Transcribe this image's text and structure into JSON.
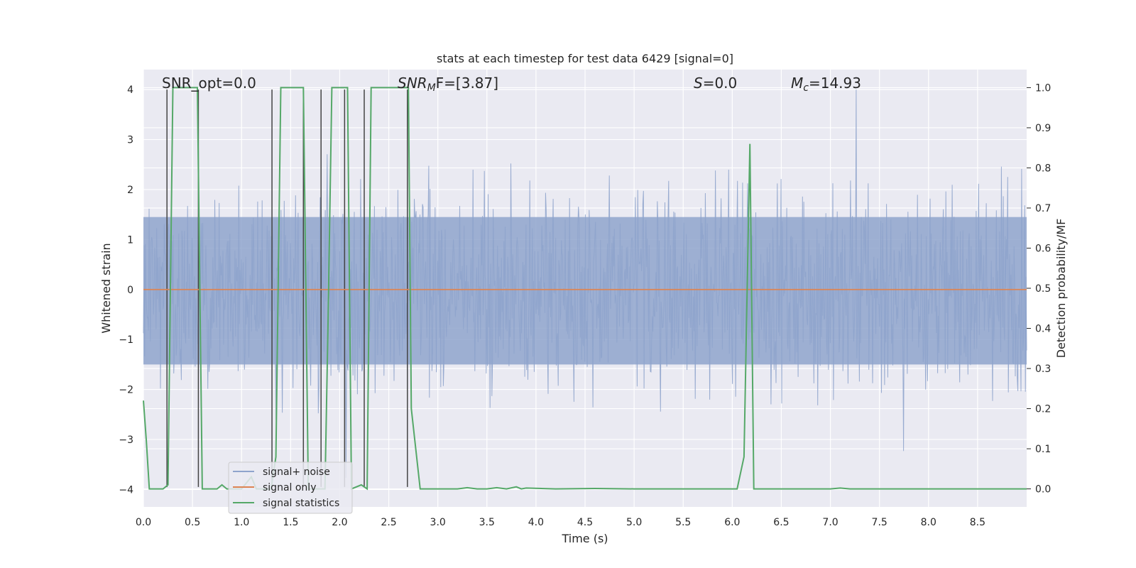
{
  "chart_data": {
    "type": "line",
    "title": "stats at each timestep for test data 6429 [signal=0]",
    "xlabel": "Time (s)",
    "ylabel": "Whitened strain",
    "ylabel_right": "Detection probability/MF",
    "xlim": [
      0.0,
      9.0
    ],
    "ylim": [
      -4.35,
      4.4
    ],
    "ylim_right": [
      -0.045,
      1.045
    ],
    "x_ticks": [
      "0.0",
      "0.5",
      "1.0",
      "1.5",
      "2.0",
      "2.5",
      "3.0",
      "3.5",
      "4.0",
      "4.5",
      "5.0",
      "5.5",
      "6.0",
      "6.5",
      "7.0",
      "7.5",
      "8.0",
      "8.5"
    ],
    "y_ticks": [
      "4",
      "3",
      "2",
      "1",
      "0",
      "−1",
      "−2",
      "−3",
      "−4"
    ],
    "y_ticks_right": [
      "1.0",
      "0.9",
      "0.8",
      "0.7",
      "0.6",
      "0.5",
      "0.4",
      "0.3",
      "0.2",
      "0.1",
      "0.0"
    ],
    "annotations": {
      "snr_opt": "SNR_opt=0.0",
      "snr_mf_label": "SNR",
      "snr_mf_sub": "M",
      "snr_mf_rest": "F=[3.87]",
      "s_label": "S",
      "s_value": "=0.0",
      "mc_label": "M",
      "mc_sub": "c",
      "mc_value": "=14.93"
    },
    "grid": true,
    "legend_placement": "lower-left",
    "series": [
      {
        "name": "signal+ noise",
        "color": "#8fa4cc",
        "axis": "left",
        "description_ticks_only": true,
        "amplitude_envelope": [
          [
            0.0,
            2.4
          ],
          [
            9.0,
            2.6
          ]
        ]
      },
      {
        "name": "signal only",
        "color": "#dd8452",
        "axis": "left",
        "x": [
          0.0,
          9.0
        ],
        "y": [
          0.0,
          0.0
        ]
      },
      {
        "name": "signal statistics",
        "color": "#55a868",
        "axis": "right",
        "x": [
          0.0,
          0.03,
          0.06,
          0.2,
          0.25,
          0.3,
          0.55,
          0.6,
          0.75,
          0.8,
          0.85,
          1.0,
          1.1,
          1.15,
          1.3,
          1.35,
          1.4,
          1.63,
          1.68,
          1.85,
          1.88,
          1.92,
          2.08,
          2.12,
          2.22,
          2.28,
          2.32,
          2.7,
          2.73,
          2.82,
          3.0,
          3.2,
          3.3,
          3.4,
          3.5,
          3.6,
          3.7,
          3.8,
          3.85,
          3.9,
          4.2,
          4.6,
          5.0,
          5.5,
          6.05,
          6.12,
          6.18,
          6.22,
          6.25,
          7.0,
          7.1,
          7.2,
          8.0,
          9.0
        ],
        "y": [
          0.22,
          0.12,
          0.0,
          0.0,
          0.01,
          1.0,
          1.0,
          0.0,
          0.0,
          0.01,
          0.0,
          0.0,
          0.03,
          0.0,
          0.0,
          0.08,
          1.0,
          1.0,
          0.0,
          0.0,
          0.4,
          1.0,
          1.0,
          0.0,
          0.01,
          0.0,
          1.0,
          1.0,
          0.2,
          0.0,
          0.0,
          0.0,
          0.003,
          0.0,
          0.0,
          0.003,
          0.0,
          0.005,
          0.0,
          0.002,
          0.0,
          0.001,
          0.0,
          0.0,
          0.0,
          0.08,
          0.86,
          0.0,
          0.0,
          0.0,
          0.002,
          0.0,
          0.0,
          0.0
        ]
      }
    ],
    "vertical_lines": {
      "color": "#444444",
      "x": [
        0.24,
        0.56,
        1.31,
        1.63,
        1.81,
        2.05,
        2.25,
        2.69
      ],
      "y_top": 4.0,
      "y_bottom": -3.95
    }
  }
}
